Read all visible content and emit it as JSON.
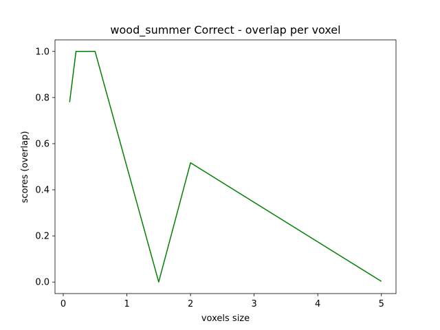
{
  "chart_data": {
    "type": "line",
    "title": "wood_summer Correct - overlap per voxel",
    "xlabel": "voxels size",
    "ylabel": "scores (overlap)",
    "xlim": [
      -0.13,
      5.23
    ],
    "ylim": [
      -0.05,
      1.05
    ],
    "xticks": [
      0,
      1,
      2,
      3,
      4,
      5
    ],
    "xtick_labels": [
      "0",
      "1",
      "2",
      "3",
      "4",
      "5"
    ],
    "yticks": [
      0.0,
      0.2,
      0.4,
      0.6,
      0.8,
      1.0
    ],
    "ytick_labels": [
      "0.0",
      "0.2",
      "0.4",
      "0.6",
      "0.8",
      "1.0"
    ],
    "grid": false,
    "series": [
      {
        "color": "#008000",
        "x": [
          0.1,
          0.2,
          0.5,
          1.5,
          2.0,
          5.0
        ],
        "y": [
          0.78,
          1.0,
          1.0,
          0.0,
          0.517,
          0.003
        ]
      }
    ]
  }
}
